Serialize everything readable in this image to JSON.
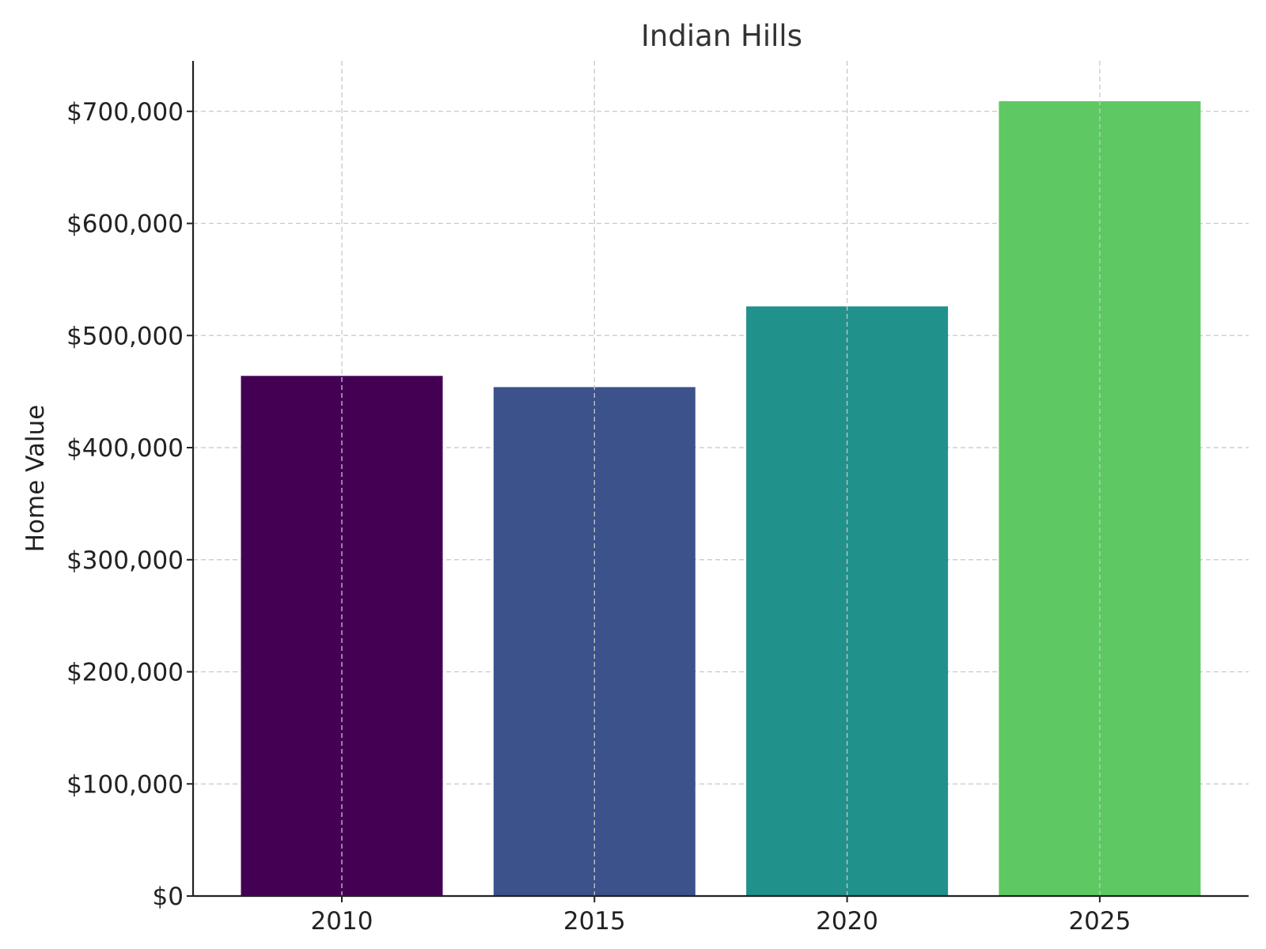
{
  "chart_data": {
    "type": "bar",
    "title": "Indian Hills",
    "xlabel": "",
    "ylabel": "Home Value",
    "categories": [
      "2010",
      "2015",
      "2020",
      "2025"
    ],
    "values": [
      464000,
      454000,
      526000,
      709000
    ],
    "bar_colors": [
      "#440154",
      "#3b528b",
      "#21918c",
      "#5ec962"
    ],
    "ylim": [
      0,
      745000
    ],
    "yticks": [
      0,
      100000,
      200000,
      300000,
      400000,
      500000,
      600000,
      700000
    ],
    "ytick_labels": [
      "$0",
      "$100,000",
      "$200,000",
      "$300,000",
      "$400,000",
      "$500,000",
      "$600,000",
      "$700,000"
    ],
    "grid": true
  }
}
